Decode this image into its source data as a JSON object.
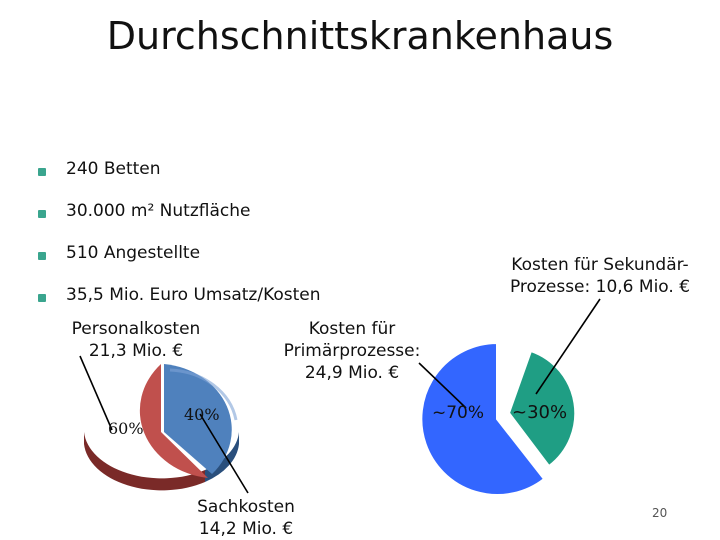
{
  "slide": {
    "title": "Durchschnittskrankenhaus",
    "bullets": [
      "240 Betten",
      "30.000 m² Nutzfläche",
      "510 Angestellte",
      "35,5 Mio. Euro Umsatz/Kosten"
    ],
    "page_number": "20"
  },
  "left_pie": {
    "personal_label_1": "Personalkosten",
    "personal_label_2": "21,3 Mio. €",
    "sach_label_1": "Sachkosten",
    "sach_label_2": "14,2 Mio. €",
    "slice_big_pct": "60%",
    "slice_small_pct": "40%",
    "colors": {
      "red": "#c0504d",
      "blue": "#4f81bd"
    }
  },
  "right_pie": {
    "primary_label_1": "Kosten für",
    "primary_label_2": "Primärprozesse:",
    "primary_label_3": "24,9 Mio. €",
    "secondary_label_1": "Kosten für Sekundär-",
    "secondary_label_2": "Prozesse: 10,6 Mio. €",
    "slice_big_pct": "~70%",
    "slice_small_pct": "~30%",
    "colors": {
      "blue": "#3366ff",
      "teal": "#1f9e84"
    }
  }
}
